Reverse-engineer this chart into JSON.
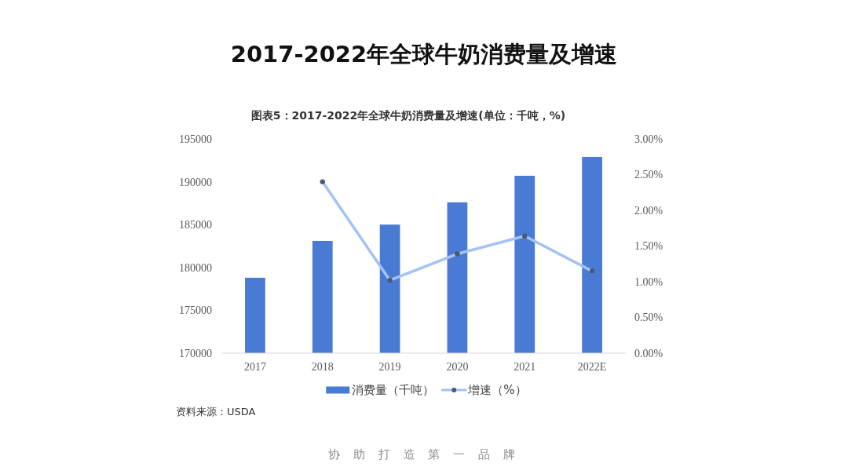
{
  "chart_data": {
    "type": "bar",
    "title": "2017-2022年全球牛奶消费量及增速",
    "subtitle": "图表5：2017-2022年全球牛奶消费量及增速(单位：千吨，%)",
    "categories": [
      "2017",
      "2018",
      "2019",
      "2020",
      "2021",
      "2022E"
    ],
    "series": [
      {
        "name": "消费量（千吨）",
        "color": "#4a7bd4",
        "values": [
          178800,
          183100,
          185000,
          187600,
          190700,
          192900
        ]
      },
      {
        "name": "增速（%）",
        "type": "line",
        "axis": "y2",
        "color": "#a4c2f4",
        "values": [
          null,
          2.4,
          1.02,
          1.39,
          1.64,
          1.15
        ]
      }
    ],
    "ylim": [
      170000,
      195000
    ],
    "yticks": [
      170000,
      175000,
      180000,
      185000,
      190000,
      195000
    ],
    "y2lim": [
      0,
      3
    ],
    "y2ticks": [
      {
        "value": 0,
        "label": "0.00%"
      },
      {
        "value": 0.5,
        "label": "0.50%"
      },
      {
        "value": 1,
        "label": "1.00%"
      },
      {
        "value": 1.5,
        "label": "1.50%"
      },
      {
        "value": 2,
        "label": "2.00%"
      },
      {
        "value": 2.5,
        "label": "2.50%"
      },
      {
        "value": 3,
        "label": "3.00%"
      }
    ],
    "legend": "bottom",
    "marker": "circle",
    "grid": false,
    "annotations": [
      "资料来源：USDA",
      "协 助 打 造 第 一 品 牌"
    ]
  }
}
